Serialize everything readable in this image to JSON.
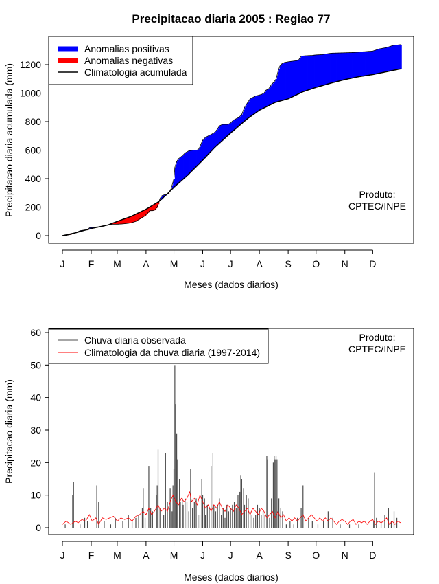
{
  "title": "Precipitacao diaria 2005 : Regiao 77",
  "chart_data": [
    {
      "type": "area",
      "name": "accumulated",
      "ylabel": "Precipitacao diaria acumulada (mm)",
      "xlabel": "Meses (dados diarios)",
      "ylim": [
        0,
        1400
      ],
      "yticks": [
        0,
        200,
        400,
        600,
        800,
        1000,
        1200
      ],
      "month_labels": [
        "J",
        "F",
        "M",
        "A",
        "M",
        "J",
        "J",
        "A",
        "S",
        "O",
        "N",
        "D"
      ],
      "month_days": [
        1,
        32,
        60,
        91,
        121,
        152,
        182,
        213,
        244,
        274,
        305,
        335
      ],
      "legend": [
        "Anomalias positivas",
        "Anomalias negativas",
        "Climatologia acumulada"
      ],
      "colors": {
        "positive": "#0000ff",
        "negative": "#ff0000",
        "climatology": "#000000"
      },
      "note": [
        "Produto:",
        "CPTEC/INPE"
      ],
      "climatology_points": [
        [
          1,
          0
        ],
        [
          15,
          20
        ],
        [
          32,
          50
        ],
        [
          50,
          75
        ],
        [
          60,
          100
        ],
        [
          75,
          135
        ],
        [
          91,
          185
        ],
        [
          105,
          240
        ],
        [
          115,
          300
        ],
        [
          121,
          340
        ],
        [
          135,
          420
        ],
        [
          152,
          530
        ],
        [
          165,
          620
        ],
        [
          182,
          720
        ],
        [
          200,
          820
        ],
        [
          213,
          880
        ],
        [
          230,
          935
        ],
        [
          244,
          960
        ],
        [
          260,
          1010
        ],
        [
          274,
          1040
        ],
        [
          290,
          1070
        ],
        [
          305,
          1095
        ],
        [
          320,
          1115
        ],
        [
          335,
          1130
        ],
        [
          350,
          1150
        ],
        [
          365,
          1170
        ]
      ],
      "observed_points": [
        [
          1,
          0
        ],
        [
          5,
          2
        ],
        [
          10,
          8
        ],
        [
          15,
          20
        ],
        [
          20,
          35
        ],
        [
          25,
          40
        ],
        [
          28,
          40
        ],
        [
          30,
          55
        ],
        [
          35,
          60
        ],
        [
          40,
          62
        ],
        [
          45,
          66
        ],
        [
          50,
          75
        ],
        [
          55,
          80
        ],
        [
          60,
          80
        ],
        [
          65,
          82
        ],
        [
          70,
          85
        ],
        [
          75,
          90
        ],
        [
          80,
          100
        ],
        [
          85,
          120
        ],
        [
          90,
          140
        ],
        [
          93,
          160
        ],
        [
          95,
          175
        ],
        [
          98,
          175
        ],
        [
          100,
          178
        ],
        [
          103,
          200
        ],
        [
          106,
          260
        ],
        [
          108,
          280
        ],
        [
          112,
          290
        ],
        [
          115,
          295
        ],
        [
          118,
          330
        ],
        [
          121,
          400
        ],
        [
          122,
          480
        ],
        [
          124,
          520
        ],
        [
          126,
          540
        ],
        [
          128,
          550
        ],
        [
          130,
          560
        ],
        [
          133,
          580
        ],
        [
          137,
          595
        ],
        [
          140,
          598
        ],
        [
          143,
          600
        ],
        [
          146,
          600
        ],
        [
          148,
          610
        ],
        [
          150,
          640
        ],
        [
          152,
          670
        ],
        [
          155,
          690
        ],
        [
          158,
          700
        ],
        [
          161,
          710
        ],
        [
          164,
          720
        ],
        [
          167,
          740
        ],
        [
          170,
          770
        ],
        [
          173,
          780
        ],
        [
          176,
          780
        ],
        [
          179,
          780
        ],
        [
          182,
          790
        ],
        [
          185,
          810
        ],
        [
          188,
          820
        ],
        [
          191,
          830
        ],
        [
          194,
          850
        ],
        [
          197,
          900
        ],
        [
          200,
          930
        ],
        [
          203,
          960
        ],
        [
          206,
          970
        ],
        [
          209,
          980
        ],
        [
          212,
          985
        ],
        [
          215,
          990
        ],
        [
          218,
          1000
        ],
        [
          220,
          1020
        ],
        [
          223,
          1030
        ],
        [
          226,
          1060
        ],
        [
          229,
          1080
        ],
        [
          231,
          1100
        ],
        [
          233,
          1150
        ],
        [
          235,
          1190
        ],
        [
          237,
          1205
        ],
        [
          240,
          1215
        ],
        [
          244,
          1220
        ],
        [
          250,
          1225
        ],
        [
          255,
          1230
        ],
        [
          258,
          1260
        ],
        [
          262,
          1262
        ],
        [
          270,
          1265
        ],
        [
          274,
          1268
        ],
        [
          280,
          1270
        ],
        [
          285,
          1275
        ],
        [
          290,
          1280
        ],
        [
          300,
          1282
        ],
        [
          305,
          1283
        ],
        [
          315,
          1285
        ],
        [
          325,
          1290
        ],
        [
          335,
          1295
        ],
        [
          342,
          1310
        ],
        [
          350,
          1320
        ],
        [
          357,
          1335
        ],
        [
          365,
          1340
        ]
      ]
    },
    {
      "type": "bar",
      "name": "daily",
      "ylabel": "Precipitacao diaria (mm)",
      "xlabel": "Meses (dados diarios)",
      "ylim": [
        0,
        60
      ],
      "yticks": [
        0,
        10,
        20,
        30,
        40,
        50,
        60
      ],
      "month_labels": [
        "J",
        "F",
        "M",
        "A",
        "M",
        "J",
        "J",
        "A",
        "S",
        "O",
        "N",
        "D"
      ],
      "month_days": [
        1,
        32,
        60,
        91,
        121,
        152,
        182,
        213,
        244,
        274,
        305,
        335
      ],
      "legend": [
        "Chuva diaria observada",
        "Climatologia da chuva diaria (1997-2014)"
      ],
      "colors": {
        "observed": "#4d4d4d",
        "climatology": "#ff0000"
      },
      "note": [
        "Produto:",
        "CPTEC/INPE"
      ],
      "observed_bars": [
        [
          4,
          1
        ],
        [
          12,
          10
        ],
        [
          13,
          14
        ],
        [
          20,
          1
        ],
        [
          25,
          3
        ],
        [
          28,
          2
        ],
        [
          38,
          13
        ],
        [
          40,
          8
        ],
        [
          46,
          2
        ],
        [
          53,
          1
        ],
        [
          58,
          3
        ],
        [
          66,
          2
        ],
        [
          72,
          4
        ],
        [
          76,
          2
        ],
        [
          80,
          3
        ],
        [
          83,
          4
        ],
        [
          87,
          6
        ],
        [
          88,
          12
        ],
        [
          90,
          3
        ],
        [
          94,
          19
        ],
        [
          96,
          6
        ],
        [
          98,
          5
        ],
        [
          102,
          10
        ],
        [
          103,
          13
        ],
        [
          104,
          24
        ],
        [
          106,
          6
        ],
        [
          110,
          4
        ],
        [
          112,
          23
        ],
        [
          114,
          8
        ],
        [
          116,
          6
        ],
        [
          117,
          12
        ],
        [
          119,
          5
        ],
        [
          120,
          13
        ],
        [
          121,
          18
        ],
        [
          122,
          50
        ],
        [
          123,
          38
        ],
        [
          124,
          29
        ],
        [
          125,
          21
        ],
        [
          127,
          15
        ],
        [
          128,
          8
        ],
        [
          130,
          9
        ],
        [
          131,
          7
        ],
        [
          133,
          9
        ],
        [
          135,
          8
        ],
        [
          137,
          5
        ],
        [
          139,
          18
        ],
        [
          141,
          6
        ],
        [
          143,
          8
        ],
        [
          145,
          9
        ],
        [
          147,
          4
        ],
        [
          149,
          4
        ],
        [
          151,
          15
        ],
        [
          152,
          10
        ],
        [
          154,
          9
        ],
        [
          155,
          4
        ],
        [
          157,
          7
        ],
        [
          159,
          6
        ],
        [
          161,
          19
        ],
        [
          163,
          23
        ],
        [
          164,
          7
        ],
        [
          166,
          5
        ],
        [
          168,
          7
        ],
        [
          170,
          9
        ],
        [
          172,
          4
        ],
        [
          174,
          6
        ],
        [
          176,
          3
        ],
        [
          178,
          7
        ],
        [
          180,
          5
        ],
        [
          182,
          6
        ],
        [
          184,
          7
        ],
        [
          186,
          8
        ],
        [
          188,
          6
        ],
        [
          190,
          10
        ],
        [
          192,
          11
        ],
        [
          193,
          16
        ],
        [
          194,
          15
        ],
        [
          196,
          12
        ],
        [
          197,
          7
        ],
        [
          199,
          10
        ],
        [
          201,
          9
        ],
        [
          203,
          5
        ],
        [
          205,
          4
        ],
        [
          207,
          3
        ],
        [
          209,
          4
        ],
        [
          211,
          7
        ],
        [
          213,
          6
        ],
        [
          215,
          4
        ],
        [
          217,
          5
        ],
        [
          219,
          4
        ],
        [
          221,
          22
        ],
        [
          222,
          21
        ],
        [
          224,
          3
        ],
        [
          226,
          9
        ],
        [
          228,
          20
        ],
        [
          229,
          22
        ],
        [
          230,
          21
        ],
        [
          231,
          22
        ],
        [
          232,
          21
        ],
        [
          234,
          9
        ],
        [
          236,
          6
        ],
        [
          238,
          5
        ],
        [
          242,
          1
        ],
        [
          246,
          2
        ],
        [
          250,
          1
        ],
        [
          254,
          3
        ],
        [
          258,
          6
        ],
        [
          260,
          13
        ],
        [
          266,
          3
        ],
        [
          270,
          2
        ],
        [
          276,
          1
        ],
        [
          282,
          2
        ],
        [
          287,
          5
        ],
        [
          292,
          3
        ],
        [
          300,
          1
        ],
        [
          310,
          1
        ],
        [
          320,
          1
        ],
        [
          336,
          2
        ],
        [
          337,
          17
        ],
        [
          339,
          3
        ],
        [
          344,
          2
        ],
        [
          348,
          4
        ],
        [
          352,
          6
        ],
        [
          355,
          2
        ],
        [
          358,
          5
        ],
        [
          361,
          3
        ]
      ],
      "climatology_points": [
        [
          1,
          1
        ],
        [
          5,
          2
        ],
        [
          10,
          1
        ],
        [
          15,
          2
        ],
        [
          18,
          1.5
        ],
        [
          22,
          2.5
        ],
        [
          26,
          2
        ],
        [
          30,
          4
        ],
        [
          33,
          2
        ],
        [
          37,
          3
        ],
        [
          40,
          1
        ],
        [
          44,
          3
        ],
        [
          48,
          2.5
        ],
        [
          52,
          3
        ],
        [
          56,
          3.5
        ],
        [
          60,
          2
        ],
        [
          64,
          3
        ],
        [
          68,
          2.5
        ],
        [
          72,
          3
        ],
        [
          76,
          2
        ],
        [
          80,
          3.5
        ],
        [
          84,
          4
        ],
        [
          88,
          5
        ],
        [
          91,
          4
        ],
        [
          94,
          6
        ],
        [
          97,
          4
        ],
        [
          100,
          5
        ],
        [
          104,
          7
        ],
        [
          107,
          5
        ],
        [
          111,
          6
        ],
        [
          114,
          5
        ],
        [
          117,
          8
        ],
        [
          120,
          10
        ],
        [
          123,
          8
        ],
        [
          126,
          7
        ],
        [
          129,
          9
        ],
        [
          132,
          8
        ],
        [
          135,
          9
        ],
        [
          138,
          11
        ],
        [
          140,
          8
        ],
        [
          143,
          9
        ],
        [
          146,
          7
        ],
        [
          149,
          10
        ],
        [
          152,
          8
        ],
        [
          155,
          6
        ],
        [
          158,
          7
        ],
        [
          161,
          5
        ],
        [
          164,
          7
        ],
        [
          167,
          6
        ],
        [
          170,
          8
        ],
        [
          173,
          6
        ],
        [
          176,
          5
        ],
        [
          179,
          7
        ],
        [
          182,
          6
        ],
        [
          185,
          5
        ],
        [
          188,
          7
        ],
        [
          191,
          6
        ],
        [
          194,
          4
        ],
        [
          197,
          5
        ],
        [
          200,
          6
        ],
        [
          203,
          4
        ],
        [
          206,
          6
        ],
        [
          209,
          5
        ],
        [
          212,
          4
        ],
        [
          215,
          6
        ],
        [
          218,
          5
        ],
        [
          221,
          3
        ],
        [
          224,
          4
        ],
        [
          227,
          5
        ],
        [
          230,
          3
        ],
        [
          233,
          5
        ],
        [
          236,
          3
        ],
        [
          239,
          4
        ],
        [
          242,
          2
        ],
        [
          245,
          3
        ],
        [
          248,
          2
        ],
        [
          251,
          3
        ],
        [
          254,
          2
        ],
        [
          257,
          3
        ],
        [
          260,
          4
        ],
        [
          263,
          2
        ],
        [
          266,
          3
        ],
        [
          269,
          4
        ],
        [
          272,
          3
        ],
        [
          275,
          2
        ],
        [
          278,
          3
        ],
        [
          281,
          2
        ],
        [
          284,
          3
        ],
        [
          287,
          2
        ],
        [
          290,
          3
        ],
        [
          293,
          2
        ],
        [
          296,
          1
        ],
        [
          299,
          2
        ],
        [
          302,
          2.5
        ],
        [
          305,
          2
        ],
        [
          308,
          1
        ],
        [
          311,
          2
        ],
        [
          314,
          2.5
        ],
        [
          317,
          1
        ],
        [
          320,
          2
        ],
        [
          323,
          1.5
        ],
        [
          326,
          2
        ],
        [
          329,
          1
        ],
        [
          332,
          2
        ],
        [
          335,
          2.5
        ],
        [
          338,
          1
        ],
        [
          341,
          2
        ],
        [
          344,
          1.5
        ],
        [
          347,
          2
        ],
        [
          350,
          3
        ],
        [
          353,
          1
        ],
        [
          356,
          2
        ],
        [
          359,
          1
        ],
        [
          362,
          2
        ],
        [
          365,
          1.5
        ]
      ]
    }
  ]
}
